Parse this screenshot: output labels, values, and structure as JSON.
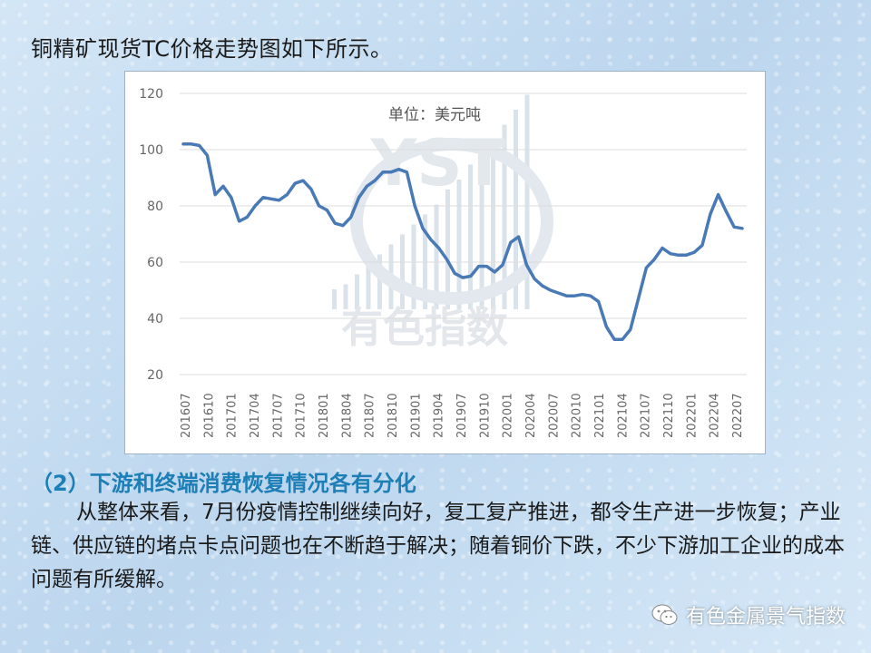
{
  "intro_text": "铜精矿现货TC价格走势图如下所示。",
  "chart_data": {
    "type": "line",
    "unit_note": "单位：美元吨",
    "ylim": [
      20,
      120
    ],
    "y_ticks": [
      "120",
      "100",
      "80",
      "60",
      "40",
      "20"
    ],
    "grid": true,
    "x_tick_labels": [
      "201607",
      "201610",
      "201701",
      "201704",
      "201707",
      "201710",
      "201801",
      "201804",
      "201807",
      "201810",
      "201901",
      "201904",
      "201907",
      "201910",
      "202001",
      "202004",
      "202007",
      "202010",
      "202101",
      "202104",
      "202107",
      "202110",
      "202201",
      "202204",
      "202207"
    ],
    "series": [
      {
        "values": [
          102,
          102,
          101.5,
          98,
          84,
          87,
          83,
          74.5,
          76,
          80,
          83,
          82.5,
          82,
          84,
          88,
          89,
          86,
          80,
          78.5,
          73.8,
          73,
          76,
          83,
          87,
          89,
          92,
          92,
          93,
          92,
          80,
          72,
          68,
          65,
          61,
          56,
          54.5,
          55,
          58.5,
          58.5,
          56.5,
          59,
          67,
          69,
          59,
          54,
          51.5,
          50,
          49,
          48,
          48,
          48.5,
          48,
          46,
          37,
          32.5,
          32.5,
          36,
          47,
          58,
          61,
          65,
          63,
          62.5,
          62.5,
          63.5,
          66,
          77,
          84,
          78,
          72.5,
          72
        ]
      }
    ],
    "line_color": "#4a7ab5"
  },
  "watermark": {
    "letters": "YST",
    "text": "有色指数"
  },
  "section_heading": "（2）下游和终端消费恢复情况各有分化",
  "paragraph": "从整体来看，7月份疫情控制继续向好，复工复产推进，都令生产进一步恢复；产业链、供应链的堵点卡点问题也在不断趋于解决；随着铜价下跌，不少下游加工企业的成本问题有所缓解。",
  "footer": {
    "brand": "有色金属景气指数",
    "icon": "wechat-icon"
  }
}
